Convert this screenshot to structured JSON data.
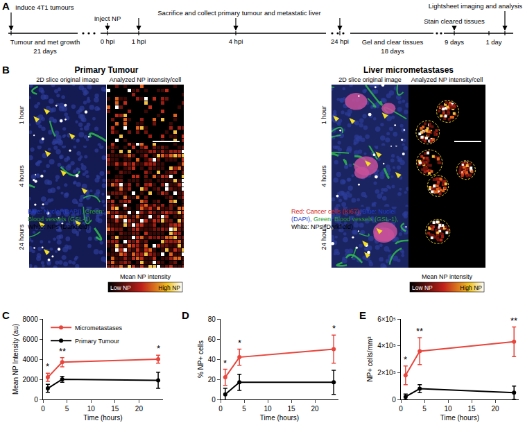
{
  "timeline": {
    "label": "A",
    "induce": "Induce 4T1 tumours",
    "growth": "Tumour and met growth",
    "growth_days": "21 days",
    "inject": "Inject NP",
    "hpi0": "0 hpi",
    "hpi1": "1 hpi",
    "sacrifice": "Sacrifice and collect primary tumour and metastatic liver",
    "hpi4": "4 hpi",
    "hpi24": "24 hpi",
    "gel": "Gel and clear tissues",
    "gel_days": "18 days",
    "stain": "Stain cleared tissues",
    "stain_days": "9 days",
    "imaging_days": "1 day",
    "imaging": "Lightsheet imaging and analysis"
  },
  "images": {
    "label": "B",
    "rows": [
      "1 hour",
      "4 hours",
      "24 hours"
    ],
    "groups": [
      {
        "title": "Primary Tumour",
        "columns": [
          "2D slice original image",
          "Analyzed NP intensity/cell"
        ],
        "channels": [
          {
            "text": "Blue: Nuclei (DAPI),",
            "color": "#1f3fd0"
          },
          {
            "text": "Green: Blood vessels (GSL-1),",
            "color": "#2a9a2a"
          },
          {
            "text": "White: NPs (Darkfield)",
            "color": "#000000"
          }
        ]
      },
      {
        "title": "Liver micrometastases",
        "columns": [
          "2D slice original image",
          "Analyzed NP intensity/cell"
        ],
        "channels": [
          {
            "text": "Red: Cancer cells (Ki67),",
            "color": "#d02020"
          },
          {
            "text": "Blue: Nuclei (DAPI),",
            "color": "#1f3fd0"
          },
          {
            "text": "Green: Blood vessels (GSL-1),",
            "color": "#2a9a2a"
          },
          {
            "text": "White: NPs (Darkfield)",
            "color": "#000000"
          }
        ]
      }
    ],
    "colorbar": {
      "title": "Mean NP intensity",
      "low": "Low NP",
      "high": "High NP"
    }
  },
  "chart_data": [
    {
      "panel": "C",
      "type": "line",
      "marker": "circle",
      "xlabel": "Time (hours)",
      "ylabel": "Mean NP Intensity (au)",
      "x": [
        1,
        4,
        24
      ],
      "xlim": [
        0,
        25
      ],
      "xticks": [
        0,
        5,
        10,
        15,
        20
      ],
      "ylim": [
        0,
        8000
      ],
      "yticks": [
        0,
        2000,
        4000,
        6000,
        8000
      ],
      "legend": "upper left",
      "series": [
        {
          "name": "Micrometastases",
          "color": "#e8453c",
          "values": [
            2200,
            3700,
            4000
          ],
          "errors": [
            400,
            450,
            400
          ]
        },
        {
          "name": "Primary Tumour",
          "color": "#000000",
          "values": [
            1100,
            2000,
            1900
          ],
          "errors": [
            400,
            300,
            800
          ]
        }
      ],
      "annotations": [
        {
          "x": 1,
          "text": "*"
        },
        {
          "x": 4,
          "text": "**"
        },
        {
          "x": 24,
          "text": "*"
        }
      ]
    },
    {
      "panel": "D",
      "type": "line",
      "marker": "circle",
      "xlabel": "Time (hours)",
      "ylabel": "% NP+ cells",
      "x": [
        1,
        4,
        24
      ],
      "xlim": [
        0,
        25
      ],
      "xticks": [
        0,
        5,
        10,
        15,
        20
      ],
      "ylim": [
        0,
        80
      ],
      "yticks": [
        0,
        20,
        40,
        60,
        80
      ],
      "series": [
        {
          "color": "#e8453c",
          "values": [
            22,
            42,
            50
          ],
          "errors": [
            8,
            8,
            14
          ]
        },
        {
          "color": "#000000",
          "values": [
            5,
            17,
            17
          ],
          "errors": [
            6,
            8,
            12
          ]
        }
      ],
      "annotations": [
        {
          "x": 1,
          "text": "*"
        },
        {
          "x": 4,
          "text": "*"
        },
        {
          "x": 24,
          "text": "*"
        }
      ]
    },
    {
      "panel": "E",
      "type": "line",
      "marker": "circle",
      "xlabel": "Time (hours)",
      "ylabel": "NP+ cells/mm³",
      "x": [
        1,
        4,
        24
      ],
      "xlim": [
        0,
        25
      ],
      "xticks": [
        0,
        5,
        10,
        15,
        20
      ],
      "ylim": [
        0,
        600000
      ],
      "yticks": [
        0,
        {
          "value": 200000,
          "label": "2×10⁵"
        },
        {
          "value": 400000,
          "label": "4×10⁵"
        },
        {
          "value": 600000,
          "label": "6×10⁵"
        }
      ],
      "series": [
        {
          "color": "#e8453c",
          "values": [
            180000,
            360000,
            430000
          ],
          "errors": [
            70000,
            100000,
            110000
          ]
        },
        {
          "color": "#000000",
          "values": [
            20000,
            80000,
            50000
          ],
          "errors": [
            20000,
            30000,
            50000
          ]
        }
      ],
      "annotations": [
        {
          "x": 1,
          "text": "*"
        },
        {
          "x": 4,
          "text": "**"
        },
        {
          "x": 24,
          "text": "**"
        }
      ]
    }
  ]
}
